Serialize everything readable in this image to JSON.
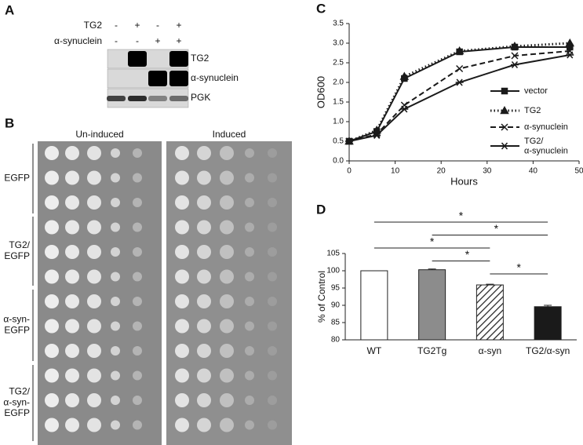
{
  "panel_a": {
    "label": "A",
    "rows": [
      {
        "name": "TG2",
        "signs": [
          "-",
          "+",
          "-",
          "+"
        ]
      },
      {
        "name": "α-synuclein",
        "signs": [
          "-",
          "-",
          "+",
          "+"
        ]
      }
    ],
    "blots": [
      "TG2",
      "α-synuclein",
      "PGK"
    ]
  },
  "panel_b": {
    "label": "B",
    "conditions": [
      "Un-induced",
      "Induced"
    ],
    "strains": [
      "EGFP",
      "TG2/\nEGFP",
      "α-syn-\nEGFP",
      "TG2/\nα-syn-\nEGFP"
    ]
  },
  "chart_data": [
    {
      "panel_label": "C",
      "type": "line",
      "x_label": "Hours",
      "y_label": "OD600",
      "x": [
        0,
        6,
        12,
        24,
        36,
        48
      ],
      "series": [
        {
          "name": "vector",
          "color": "#1a1a1a",
          "dash": "solid",
          "marker": "square",
          "values": [
            0.5,
            0.75,
            2.1,
            2.78,
            2.9,
            2.9
          ]
        },
        {
          "name": "TG2",
          "color": "#1a1a1a",
          "dash": "dotted",
          "marker": "triangle",
          "values": [
            0.5,
            0.78,
            2.15,
            2.8,
            2.92,
            3.0
          ]
        },
        {
          "name": "α-synuclein",
          "color": "#1a1a1a",
          "dash": "dashed",
          "marker": "x",
          "values": [
            0.5,
            0.68,
            1.42,
            2.35,
            2.68,
            2.8
          ]
        },
        {
          "name": "TG2/\nα-synuclein",
          "color": "#1a1a1a",
          "dash": "solid",
          "marker": "asterisk",
          "values": [
            0.5,
            0.65,
            1.32,
            2.0,
            2.45,
            2.7
          ]
        }
      ],
      "xlim": [
        0,
        50
      ],
      "xticks": [
        0,
        10,
        20,
        30,
        40,
        50
      ],
      "ylim": [
        0,
        3.5
      ],
      "yticks": [
        {
          "value": 0,
          "label": "0.0"
        },
        0.5,
        {
          "value": 1,
          "label": "1.0"
        },
        1.5,
        {
          "value": 2,
          "label": "2.0"
        },
        2.5,
        {
          "value": 3,
          "label": "3.0"
        },
        3.5
      ]
    },
    {
      "panel_label": "D",
      "type": "bar",
      "y_label": "% of Control",
      "categories": [
        "WT",
        "TG2Tg",
        "α-syn",
        "TG2/α-syn"
      ],
      "values": [
        100,
        100.3,
        95.9,
        89.6
      ],
      "errors": [
        0,
        0.2,
        0.2,
        0.4
      ],
      "colors": [
        "#ffffff",
        "#8c8c8c",
        "#ffffff",
        "#1a1a1a"
      ],
      "hatched": [
        false,
        false,
        true,
        false
      ],
      "ylim": [
        80,
        105
      ],
      "yticks": [
        80,
        85,
        90,
        95,
        100,
        105
      ],
      "significance": [
        {
          "from": 0,
          "to": 3,
          "label": "*"
        },
        {
          "from": 1,
          "to": 3,
          "label": "*"
        },
        {
          "from": 0,
          "to": 2,
          "label": "*"
        },
        {
          "from": 1,
          "to": 2,
          "label": "*"
        },
        {
          "from": 2,
          "to": 3,
          "label": "*"
        }
      ]
    }
  ]
}
